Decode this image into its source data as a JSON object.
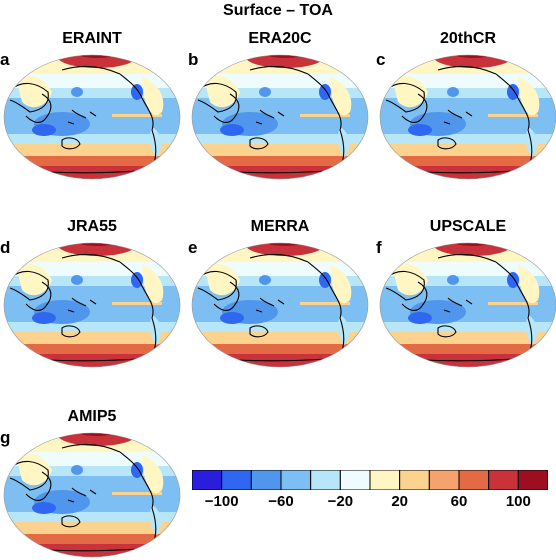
{
  "title": "Surface – TOA",
  "panels": [
    {
      "letter": "a",
      "name": "ERAINT"
    },
    {
      "letter": "b",
      "name": "ERA20C"
    },
    {
      "letter": "c",
      "name": "20thCR"
    },
    {
      "letter": "d",
      "name": "JRA55"
    },
    {
      "letter": "e",
      "name": "MERRA"
    },
    {
      "letter": "f",
      "name": "UPSCALE"
    },
    {
      "letter": "g",
      "name": "AMIP5"
    }
  ],
  "colorbar": {
    "colors": [
      "#2a1ddb",
      "#2f67f0",
      "#5096ec",
      "#7dbff2",
      "#b6e6f8",
      "#eefcfd",
      "#fff6c4",
      "#fbd28e",
      "#f6a26c",
      "#e46a45",
      "#c9313b",
      "#9e0e21"
    ],
    "tick_labels": [
      "−100",
      "−60",
      "−20",
      "20",
      "60",
      "100"
    ]
  }
}
